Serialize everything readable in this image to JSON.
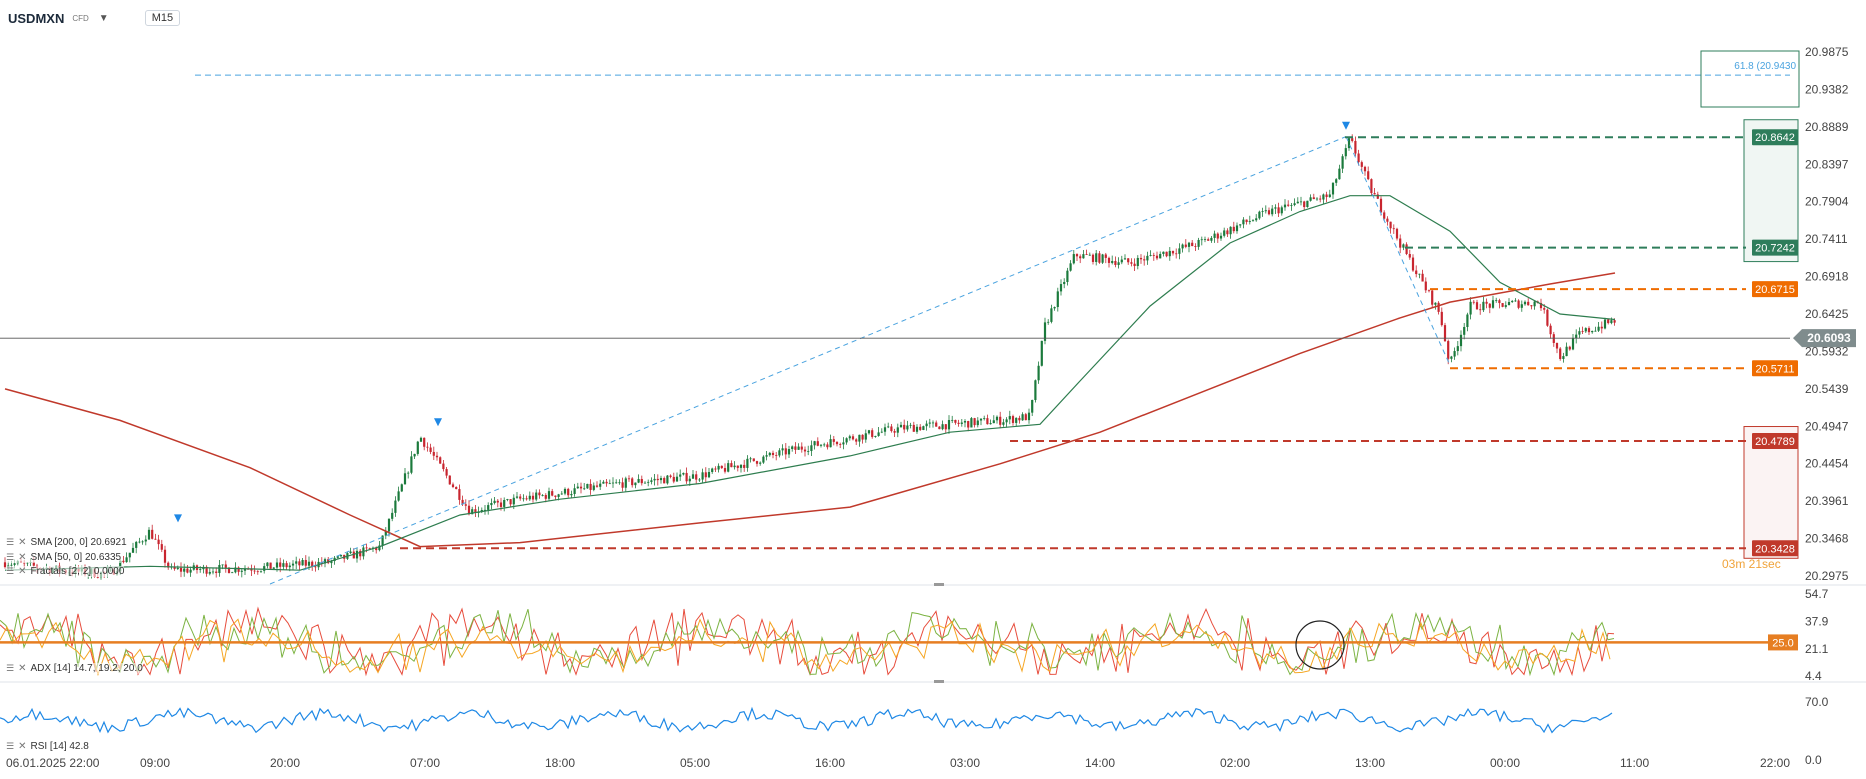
{
  "toolbar": {
    "symbol": "USDMXN",
    "type": "CFD",
    "timeframe": "M15"
  },
  "price_scale": [
    "20.9875",
    "20.9382",
    "20.8889",
    "20.8397",
    "20.7904",
    "20.7411",
    "20.6918",
    "20.6425",
    "20.5932",
    "20.5439",
    "20.4947",
    "20.4454",
    "20.3961",
    "20.3468",
    "20.2975"
  ],
  "current_price": "20.6093",
  "countdown": "03m 21sec",
  "price_tags": {
    "tp_top": "20.8642",
    "tp_bottom": "20.7242",
    "orange_upper": "20.6715",
    "orange_lower": "20.5711",
    "sl_top": "20.4789",
    "sl_bottom": "20.3428"
  },
  "fib_label": "61.8 (20.9430",
  "adx_scale": [
    "54.7",
    "37.9",
    "21.1",
    "4.4"
  ],
  "adx_level": "25.0",
  "rsi_scale": [
    "70.0",
    "0.0"
  ],
  "legends": {
    "sma200": "SMA [200, 0] 20.6921",
    "sma50": "SMA [50, 0] 20.6335",
    "fractals": "Fractals [2, 2] 0.0000",
    "adx": "ADX [14] 14.7, 19.2, 20.0",
    "rsi": "RSI [14] 42.8"
  },
  "time_axis": [
    "06.01.2025  22:00",
    "09:00",
    "20:00",
    "07:00",
    "18:00",
    "05:00",
    "16:00",
    "03:00",
    "14:00",
    "02:00",
    "13:00",
    "00:00",
    "11:00",
    "22:00"
  ],
  "colors": {
    "bull": "#1b7a3c",
    "bear": "#c8252f",
    "sma200": "#c0392b",
    "sma50": "#2e7d4f",
    "tp": "#2e7d5b",
    "sl": "#c0392b",
    "orange": "#ef6c00",
    "fib": "#4aa3df",
    "rsi": "#1e88e5",
    "adx_level": "#e67e22"
  }
}
